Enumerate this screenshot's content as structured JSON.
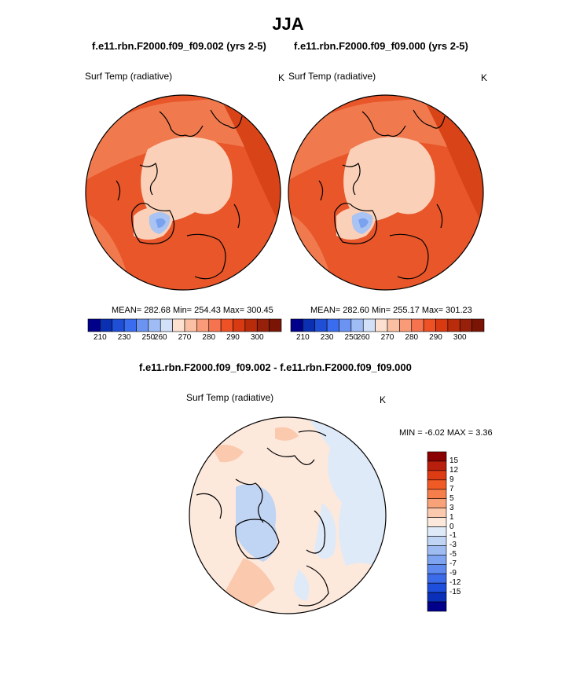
{
  "title": "JJA",
  "panels": [
    {
      "subtitle": "f.e11.rbn.F2000.f09_f09.002 (yrs 2-5)",
      "variable": "Surf Temp (radiative)",
      "units": "K",
      "stats": "MEAN= 282.68  Min= 254.43  Max= 300.45"
    },
    {
      "subtitle": "f.e11.rbn.F2000.f09_f09.000 (yrs 2-5)",
      "variable": "Surf Temp (radiative)",
      "units": "K",
      "stats": "MEAN= 282.60  Min= 255.17  Max= 301.23"
    }
  ],
  "diff_panel": {
    "subtitle": "f.e11.rbn.F2000.f09_f09.002 - f.e11.rbn.F2000.f09_f09.000",
    "variable": "Surf Temp (radiative)",
    "units": "K",
    "minmax": "MIN =  -6.02 MAX =   3.36"
  },
  "abs_colorbar": {
    "colors": [
      "#00008b",
      "#0a2fb0",
      "#1f4fd6",
      "#3a6cf0",
      "#6a93f2",
      "#9fbcf4",
      "#d2e1f8",
      "#fde0cf",
      "#fbc0a3",
      "#f99b78",
      "#f5744f",
      "#ee5126",
      "#d93a12",
      "#b82c0c",
      "#96200a",
      "#7a1405"
    ],
    "tick_labels": [
      "210",
      "230",
      "250",
      "260",
      "270",
      "280",
      "290",
      "300"
    ]
  },
  "diff_colorbar": {
    "colors": [
      "#8b0000",
      "#b81f0c",
      "#dd3b14",
      "#f05a25",
      "#f57e4b",
      "#f8a27a",
      "#fbc9ad",
      "#fde8dc",
      "#dfeaf8",
      "#c0d4f4",
      "#9fbcf2",
      "#7ea3f0",
      "#5e89ee",
      "#3c6bea",
      "#1d4fdc",
      "#0a2fb8",
      "#00008b"
    ],
    "tick_labels": [
      "15",
      "12",
      "9",
      "7",
      "5",
      "3",
      "1",
      "0",
      "-1",
      "-3",
      "-5",
      "-7",
      "-9",
      "-12",
      "-15"
    ]
  }
}
